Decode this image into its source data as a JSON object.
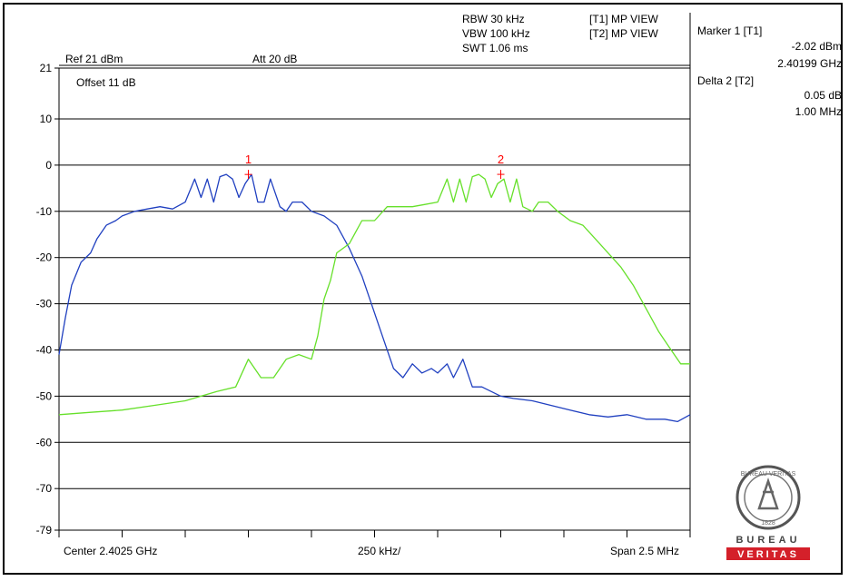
{
  "header": {
    "rbw": "RBW 30 kHz",
    "vbw": "VBW 100 kHz",
    "swt": "SWT 1.06 ms",
    "trace1": "[T1] MP VIEW",
    "trace2": "[T2] MP VIEW",
    "ref_level": "Ref 21 dBm",
    "attenuation": "Att  20 dB",
    "offset": "Offset 11 dB"
  },
  "markers": {
    "marker1_title": "Marker 1 [T1]",
    "marker1_level": "-2.02 dBm",
    "marker1_freq": "2.40199 GHz",
    "delta2_title": "Delta 2 [T2]",
    "delta2_level": "0.05 dB",
    "delta2_freq": "1.00 MHz",
    "marker1_label": "1",
    "marker2_label": "2"
  },
  "footer": {
    "center": "Center 2.4025 GHz",
    "per_div": "250 kHz/",
    "span": "Span 2.5 MHz"
  },
  "logo": {
    "top_text": "BUREAU VERITAS",
    "year": "1828",
    "word1": "BUREAU",
    "word2": "VERITAS"
  },
  "chart_data": {
    "type": "line",
    "xlabel": "",
    "ylabel": "",
    "xlim": [
      0,
      10
    ],
    "ylim": [
      -79,
      21
    ],
    "yticks": [
      21,
      10,
      0,
      -10,
      -20,
      -30,
      -40,
      -50,
      -60,
      -70,
      -79
    ],
    "ytick_labels": [
      "21",
      "10",
      "0",
      "-10",
      "-20",
      "-30",
      "-40",
      "-50",
      "-60",
      "-70",
      "-79"
    ],
    "grid": true,
    "colors": {
      "trace1": "#2040c0",
      "trace2": "#66e02a",
      "marker": "#ff0000"
    },
    "series": [
      {
        "name": "[T1] MP VIEW",
        "x": [
          0,
          0.1,
          0.2,
          0.35,
          0.5,
          0.6,
          0.75,
          0.9,
          1.0,
          1.2,
          1.4,
          1.6,
          1.8,
          2.0,
          2.15,
          2.25,
          2.35,
          2.45,
          2.55,
          2.65,
          2.75,
          2.85,
          2.95,
          3.05,
          3.15,
          3.25,
          3.35,
          3.5,
          3.6,
          3.7,
          3.85,
          4.0,
          4.2,
          4.4,
          4.6,
          4.8,
          5.0,
          5.15,
          5.3,
          5.45,
          5.6,
          5.75,
          5.9,
          6.0,
          6.15,
          6.25,
          6.4,
          6.55,
          6.7,
          6.85,
          7.0,
          7.2,
          7.5,
          7.8,
          8.1,
          8.4,
          8.7,
          9.0,
          9.3,
          9.6,
          9.8,
          10.0
        ],
        "y": [
          -41,
          -33,
          -26,
          -21,
          -19,
          -16,
          -13,
          -12,
          -11,
          -10,
          -9.5,
          -9,
          -9.5,
          -8,
          -3,
          -7,
          -3,
          -8,
          -2.5,
          -2,
          -3,
          -7,
          -4,
          -2,
          -8,
          -8,
          -3,
          -9,
          -10,
          -8,
          -8,
          -10,
          -11,
          -13,
          -18,
          -24,
          -32,
          -38,
          -44,
          -46,
          -43,
          -45,
          -44,
          -45,
          -43,
          -46,
          -42,
          -48,
          -48,
          -49,
          -50,
          -50.5,
          -51,
          -52,
          -53,
          -54,
          -54.5,
          -54,
          -55,
          -55,
          -55.5,
          -54
        ]
      },
      {
        "name": "[T2] MP VIEW",
        "x": [
          0,
          0.5,
          1.0,
          1.5,
          2.0,
          2.5,
          2.8,
          3.0,
          3.2,
          3.4,
          3.6,
          3.8,
          4.0,
          4.1,
          4.2,
          4.3,
          4.4,
          4.6,
          4.8,
          5.0,
          5.2,
          5.4,
          5.6,
          5.8,
          6.0,
          6.15,
          6.25,
          6.35,
          6.45,
          6.55,
          6.65,
          6.75,
          6.85,
          6.95,
          7.05,
          7.15,
          7.25,
          7.35,
          7.5,
          7.6,
          7.75,
          7.9,
          8.1,
          8.3,
          8.5,
          8.7,
          8.9,
          9.1,
          9.3,
          9.5,
          9.7,
          9.85,
          10.0
        ],
        "y": [
          -54,
          -53.5,
          -53,
          -52,
          -51,
          -49,
          -48,
          -42,
          -46,
          -46,
          -42,
          -41,
          -42,
          -37,
          -29,
          -25,
          -19,
          -17,
          -12,
          -12,
          -9,
          -9,
          -9,
          -8.5,
          -8,
          -3,
          -8,
          -3,
          -8,
          -2.5,
          -2,
          -3,
          -7,
          -4,
          -3,
          -8,
          -3,
          -9,
          -10,
          -8,
          -8,
          -10,
          -12,
          -13,
          -16,
          -19,
          -22,
          -26,
          -31,
          -36,
          -40,
          -43,
          -43
        ]
      }
    ],
    "markers": [
      {
        "label": "1",
        "x": 3.0,
        "y": -2.02
      },
      {
        "label": "2",
        "x": 7.0,
        "y": -2.0
      }
    ]
  }
}
